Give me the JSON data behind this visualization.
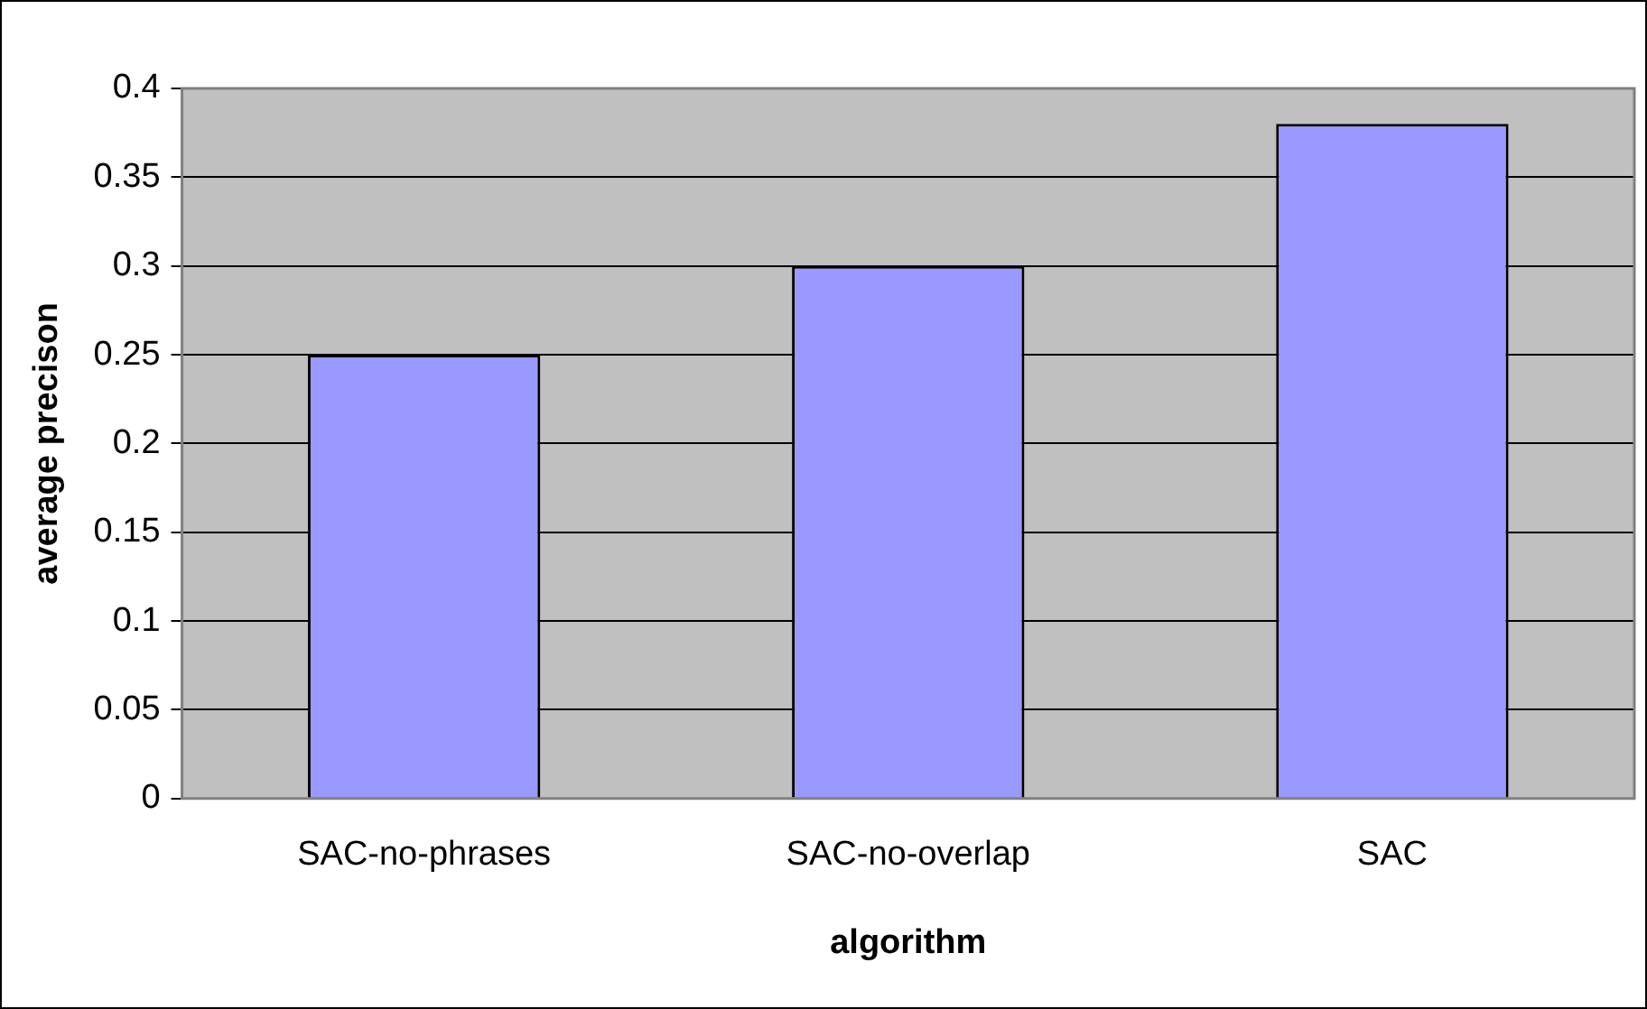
{
  "chart_data": {
    "type": "bar",
    "xlabel": "algorithm",
    "ylabel": "average precison",
    "categories": [
      "SAC-no-phrases",
      "SAC-no-overlap",
      "SAC"
    ],
    "values": [
      0.25,
      0.3,
      0.38
    ],
    "color": "#9999ff",
    "ylim": [
      0,
      0.4
    ],
    "yticks": [
      0,
      0.05,
      0.1,
      0.15,
      0.2,
      0.25,
      0.3,
      0.35,
      0.4
    ],
    "grid": "y",
    "legend": false
  }
}
